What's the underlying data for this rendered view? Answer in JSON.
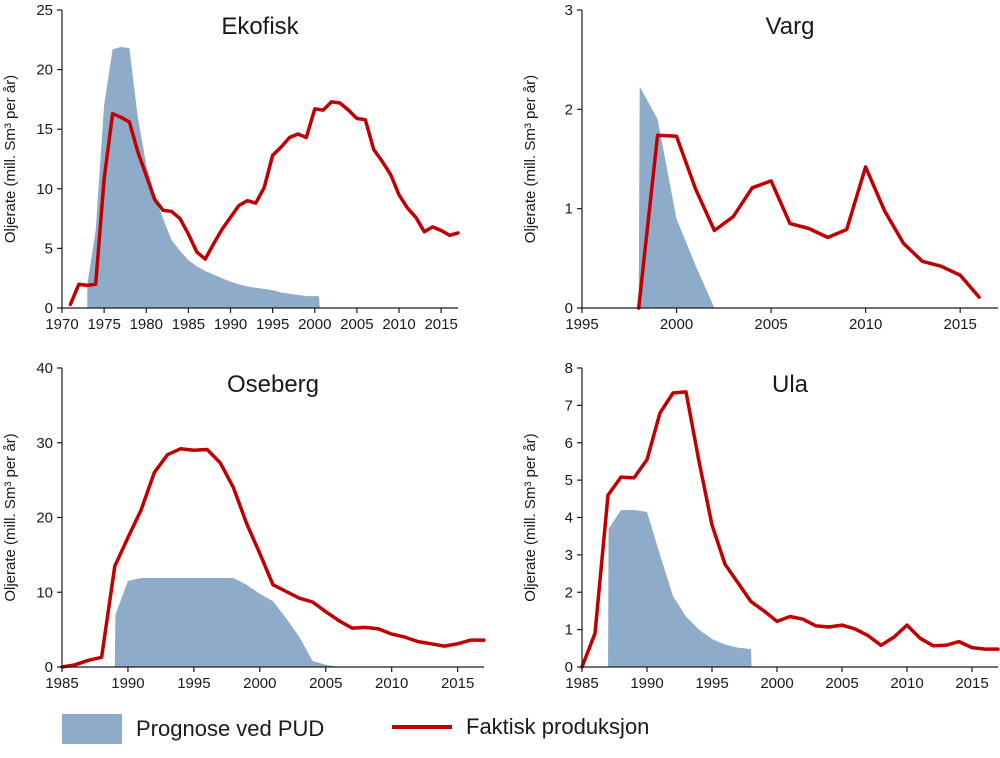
{
  "colors": {
    "forecast_fill": "#8eacc9",
    "actual_line": "#c00000",
    "axis": "#1a1a1a"
  },
  "legend": [
    {
      "kind": "area",
      "label": "Prognose ved PUD"
    },
    {
      "kind": "line",
      "label": "Faktisk produksjon"
    }
  ],
  "chart_data": [
    {
      "type": "area",
      "title": "Ekofisk",
      "ylabel": "Oljerate (mill. Sm³ per år)",
      "xlabel": "",
      "xlim": [
        1970,
        2017
      ],
      "ylim": [
        0,
        25
      ],
      "xticks": [
        1970,
        1975,
        1980,
        1985,
        1990,
        1995,
        2000,
        2005,
        2010,
        2015
      ],
      "yticks": [
        0,
        5,
        10,
        15,
        20,
        25
      ],
      "series": [
        {
          "name": "Prognose ved PUD",
          "kind": "area",
          "x": [
            1973,
            1974,
            1975,
            1976,
            1977,
            1978,
            1979,
            1980,
            1981,
            1982,
            1983,
            1984,
            1985,
            1986,
            1987,
            1988,
            1989,
            1990,
            1991,
            1992,
            1993,
            1994,
            1995,
            1996,
            1997,
            1998,
            1999,
            2000,
            2000.5,
            2000.6
          ],
          "y": [
            2,
            6.5,
            17,
            21.7,
            21.9,
            21.8,
            16,
            12,
            9.5,
            7.5,
            5.7,
            4.8,
            4,
            3.5,
            3.1,
            2.8,
            2.5,
            2.2,
            2.0,
            1.8,
            1.7,
            1.6,
            1.5,
            1.3,
            1.2,
            1.1,
            1.0,
            1.0,
            1.0,
            0
          ]
        },
        {
          "name": "Faktisk produksjon",
          "kind": "line",
          "x": [
            1971,
            1972,
            1973,
            1974,
            1975,
            1976,
            1977,
            1978,
            1979,
            1980,
            1981,
            1982,
            1983,
            1984,
            1985,
            1986,
            1987,
            1988,
            1989,
            1990,
            1991,
            1992,
            1993,
            1994,
            1995,
            1996,
            1997,
            1998,
            1999,
            2000,
            2001,
            2002,
            2003,
            2004,
            2005,
            2006,
            2007,
            2008,
            2009,
            2010,
            2011,
            2012,
            2013,
            2014,
            2015,
            2016,
            2017
          ],
          "y": [
            0.3,
            2.0,
            1.9,
            2.0,
            10.8,
            16.3,
            16.0,
            15.6,
            13.1,
            11.1,
            9.1,
            8.2,
            8.1,
            7.5,
            6.2,
            4.7,
            4.1,
            5.4,
            6.6,
            7.6,
            8.6,
            9.0,
            8.8,
            10.1,
            12.8,
            13.5,
            14.3,
            14.6,
            14.3,
            16.7,
            16.6,
            17.3,
            17.2,
            16.6,
            15.9,
            15.8,
            13.3,
            12.3,
            11.2,
            9.5,
            8.4,
            7.6,
            6.4,
            6.8,
            6.5,
            6.1,
            6.3
          ]
        }
      ]
    },
    {
      "type": "area",
      "title": "Varg",
      "ylabel": "Oljerate (mill. Sm³ per år)",
      "xlabel": "",
      "xlim": [
        1995,
        2017
      ],
      "ylim": [
        0,
        3
      ],
      "xticks": [
        1995,
        2000,
        2005,
        2010,
        2015
      ],
      "yticks": [
        0,
        1,
        2,
        3
      ],
      "series": [
        {
          "name": "Prognose ved PUD",
          "kind": "area",
          "x": [
            1998,
            1998.05,
            1999,
            2000,
            2001,
            2002
          ],
          "y": [
            0,
            2.23,
            1.9,
            0.9,
            0.43,
            0
          ]
        },
        {
          "name": "Faktisk produksjon",
          "kind": "line",
          "x": [
            1998,
            1999,
            2000,
            2001,
            2002,
            2003,
            2004,
            2005,
            2006,
            2007,
            2008,
            2009,
            2010,
            2011,
            2012,
            2013,
            2014,
            2015,
            2016
          ],
          "y": [
            0,
            1.74,
            1.73,
            1.2,
            0.78,
            0.92,
            1.21,
            1.28,
            0.85,
            0.8,
            0.71,
            0.79,
            1.42,
            0.98,
            0.65,
            0.47,
            0.42,
            0.33,
            0.11
          ]
        }
      ]
    },
    {
      "type": "area",
      "title": "Oseberg",
      "ylabel": "Oljerate (mill. Sm³ per år)",
      "xlabel": "",
      "xlim": [
        1985,
        2017
      ],
      "ylim": [
        0,
        40
      ],
      "xticks": [
        1985,
        1990,
        1995,
        2000,
        2005,
        2010,
        2015
      ],
      "yticks": [
        0,
        10,
        20,
        30,
        40
      ],
      "series": [
        {
          "name": "Prognose ved PUD",
          "kind": "area",
          "x": [
            1989,
            1989.05,
            1990,
            1991,
            1992,
            1993,
            1994,
            1995,
            1996,
            1997,
            1998,
            1999,
            2000,
            2001,
            2002,
            2003,
            2004,
            2005,
            2006
          ],
          "y": [
            0,
            7,
            11.5,
            11.9,
            11.9,
            11.9,
            11.9,
            11.9,
            11.9,
            11.9,
            11.9,
            11.0,
            9.8,
            8.8,
            6.5,
            4.0,
            0.8,
            0.3,
            0
          ]
        },
        {
          "name": "Faktisk produksjon",
          "kind": "line",
          "x": [
            1985,
            1986,
            1987,
            1988,
            1989,
            1990,
            1991,
            1992,
            1993,
            1994,
            1995,
            1996,
            1997,
            1998,
            1999,
            2000,
            2001,
            2002,
            2003,
            2004,
            2005,
            2006,
            2007,
            2008,
            2009,
            2010,
            2011,
            2012,
            2013,
            2014,
            2015,
            2016,
            2017
          ],
          "y": [
            0,
            0.3,
            0.9,
            1.3,
            13.5,
            17.3,
            21,
            26,
            28.4,
            29.2,
            29.0,
            29.1,
            27.3,
            24,
            19.2,
            15.2,
            11,
            10.1,
            9.2,
            8.7,
            7.4,
            6.2,
            5.2,
            5.3,
            5.1,
            4.4,
            4.0,
            3.4,
            3.1,
            2.8,
            3.1,
            3.6,
            3.6
          ]
        }
      ]
    },
    {
      "type": "area",
      "title": "Ula",
      "ylabel": "Oljerate (mill. Sm³ per år)",
      "xlabel": "",
      "xlim": [
        1985,
        2017
      ],
      "ylim": [
        0,
        8
      ],
      "xticks": [
        1985,
        1990,
        1995,
        2000,
        2005,
        2010,
        2015
      ],
      "yticks": [
        0,
        1,
        2,
        3,
        4,
        5,
        6,
        7,
        8
      ],
      "series": [
        {
          "name": "Prognose ved PUD",
          "kind": "area",
          "x": [
            1987,
            1987.05,
            1988,
            1989,
            1990,
            1991,
            1992,
            1993,
            1994,
            1995,
            1996,
            1997,
            1998,
            1998.05
          ],
          "y": [
            0,
            3.7,
            4.2,
            4.2,
            4.15,
            3.0,
            1.9,
            1.35,
            1.0,
            0.75,
            0.6,
            0.52,
            0.48,
            0
          ]
        },
        {
          "name": "Faktisk produksjon",
          "kind": "line",
          "x": [
            1985,
            1986,
            1987,
            1988,
            1989,
            1990,
            1991,
            1992,
            1993,
            1994,
            1995,
            1996,
            1997,
            1998,
            1999,
            2000,
            2001,
            2002,
            2003,
            2004,
            2005,
            2006,
            2007,
            2008,
            2009,
            2010,
            2011,
            2012,
            2013,
            2014,
            2015,
            2016,
            2017
          ],
          "y": [
            0,
            0.9,
            4.6,
            5.08,
            5.06,
            5.55,
            6.8,
            7.33,
            7.36,
            5.5,
            3.8,
            2.75,
            2.25,
            1.75,
            1.5,
            1.22,
            1.35,
            1.28,
            1.1,
            1.07,
            1.12,
            1.02,
            0.84,
            0.58,
            0.8,
            1.12,
            0.77,
            0.57,
            0.58,
            0.68,
            0.52,
            0.48,
            0.48
          ]
        }
      ]
    }
  ]
}
